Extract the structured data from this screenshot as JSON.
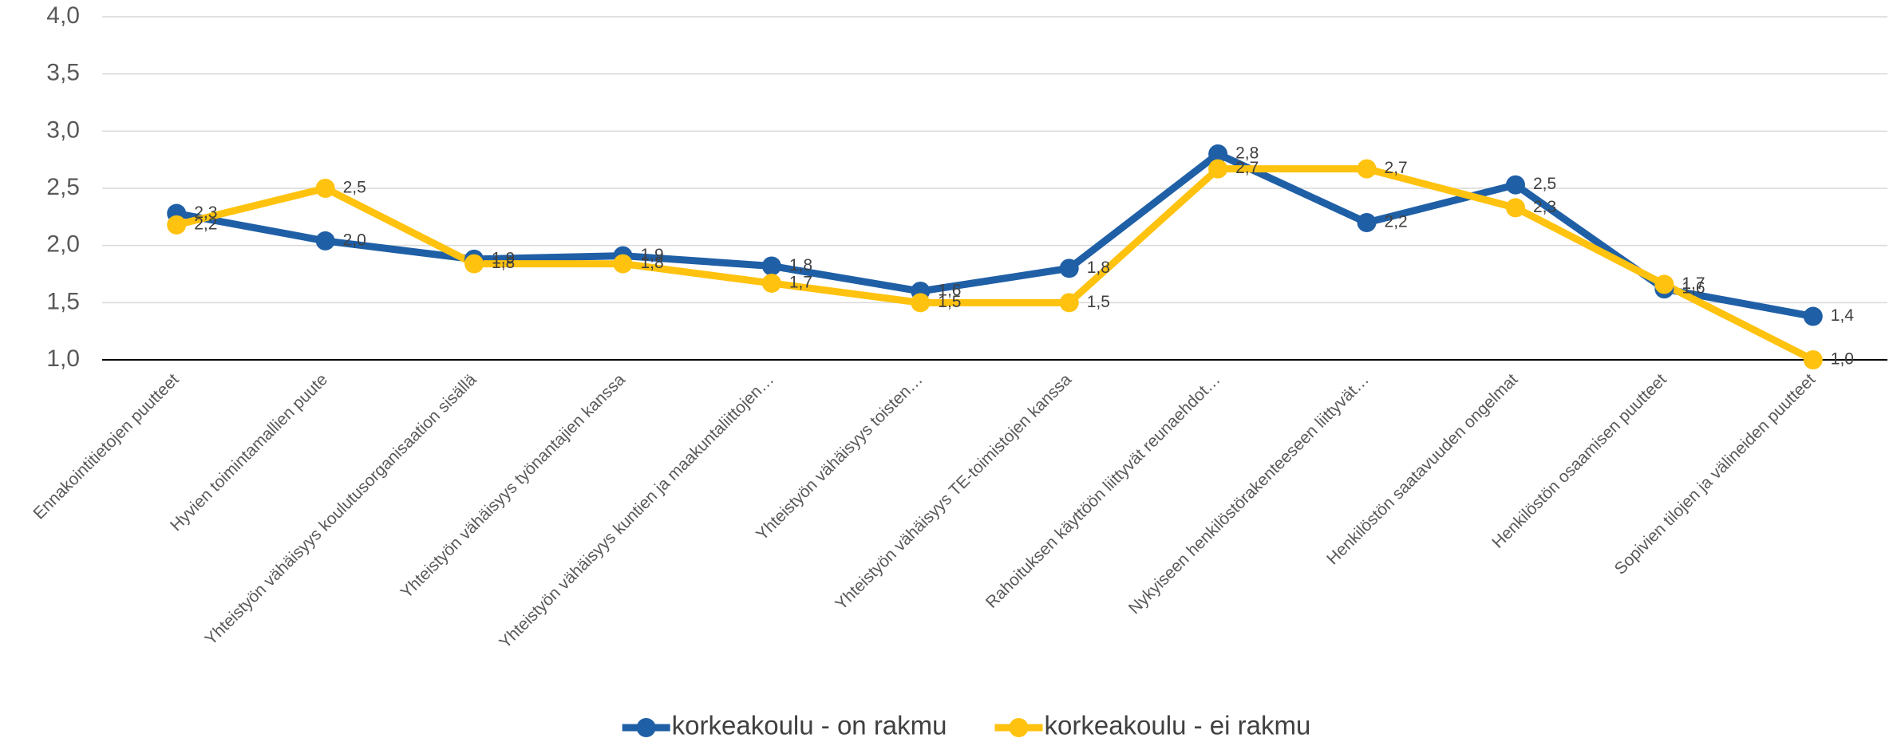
{
  "chart_data": {
    "type": "line",
    "categories": [
      "Ennakointitietojen puutteet",
      "Hyvien toimintamallien puute",
      "Yhteistyön vähäisyys koulutusorganisaation sisällä",
      "Yhteistyön vähäisyys työnantajien kanssa",
      "Yhteistyön vähäisyys kuntien ja maakuntaliittojen…",
      "Yhteistyön vähäisyys toisten…",
      "Yhteistyön vähäisyys TE-toimistojen kanssa",
      "Rahoituksen käyttöön liittyvät reunaehdot…",
      "Nykyiseen henkilöstörakenteeseen liittyvät…",
      "Henkilöstön saatavuuden ongelmat",
      "Henkilöstön osaamisen puutteet",
      "Sopivien tilojen ja välineiden puutteet"
    ],
    "series": [
      {
        "name": "korkeakoulu - on rakmu",
        "color": "#1f5fa6",
        "values": [
          2.28,
          2.04,
          1.88,
          1.91,
          1.82,
          1.6,
          1.8,
          2.8,
          2.2,
          2.53,
          1.62,
          1.38
        ],
        "value_labels": [
          "2,3",
          "2,0",
          "1,9",
          "1,9",
          "1,8",
          "1,6",
          "1,8",
          "2,8",
          "2,2",
          "2,5",
          "1,6",
          "1,4"
        ]
      },
      {
        "name": "korkeakoulu - ei rakmu",
        "color": "#ffc20e",
        "values": [
          2.18,
          2.5,
          1.84,
          1.84,
          1.67,
          1.5,
          1.5,
          2.67,
          2.67,
          2.33,
          1.66,
          1.0
        ],
        "value_labels": [
          "2,2",
          "2,5",
          "1,8",
          "1,8",
          "1,7",
          "1,5",
          "1,5",
          "2,7",
          "2,7",
          "2,3",
          "1,7",
          "1,0"
        ]
      }
    ],
    "ylim": [
      1,
      4
    ],
    "yticks": [
      {
        "value": 1,
        "label": "1,0"
      },
      {
        "value": 1.5,
        "label": "1,5"
      },
      {
        "value": 2,
        "label": "2,0"
      },
      {
        "value": 2.5,
        "label": "2,5"
      },
      {
        "value": 3,
        "label": "3,0"
      },
      {
        "value": 3.5,
        "label": "3,5"
      },
      {
        "value": 4,
        "label": "4,0"
      }
    ],
    "grid": true,
    "legend": "bottom"
  }
}
